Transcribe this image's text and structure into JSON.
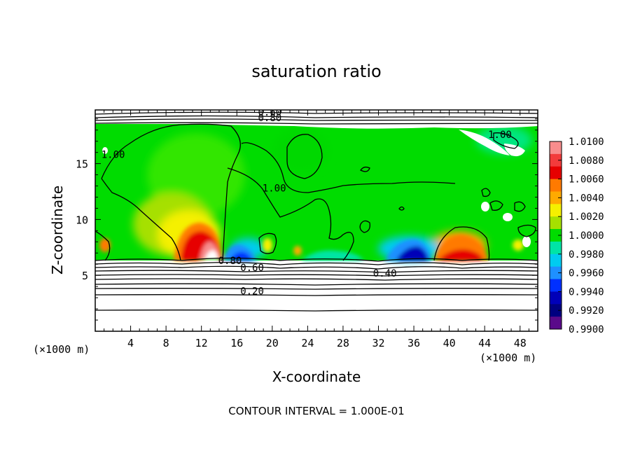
{
  "chart_data": {
    "type": "heatmap",
    "title": "saturation ratio",
    "xlabel": "X-coordinate",
    "ylabel": "Z-coordinate",
    "x_unit_label": "(×1000 m)",
    "z_unit_label": "(×1000 m)",
    "xlim": [
      0,
      50
    ],
    "ylim": [
      0,
      19.8
    ],
    "x_ticks": [
      "4",
      "8",
      "12",
      "16",
      "20",
      "24",
      "28",
      "32",
      "36",
      "40",
      "44",
      "48"
    ],
    "y_ticks": [
      "5",
      "10",
      "15"
    ],
    "colorbar": {
      "ticks": [
        "1.0100",
        "1.0080",
        "1.0060",
        "1.0040",
        "1.0020",
        "1.0000",
        "0.9980",
        "0.9960",
        "0.9940",
        "0.9920",
        "0.9900"
      ],
      "colors": [
        "#f88d8d",
        "#f33c3c",
        "#e60000",
        "#ff7a00",
        "#ffaa00",
        "#f5f000",
        "#a6e000",
        "#00dc00",
        "#00e4a6",
        "#00ccf0",
        "#1e90ff",
        "#0030ff",
        "#0000b8",
        "#000080",
        "#5a0a8a"
      ],
      "range": [
        0.99,
        1.01
      ]
    },
    "contour_labels": [
      {
        "text": "0.80",
        "x": 19.5,
        "z": 18.8
      },
      {
        "text": "0.60",
        "x": 19.5,
        "z": 19.3
      },
      {
        "text": "1.00",
        "x": 1.8,
        "z": 15.5
      },
      {
        "text": "1.00",
        "x": 20.0,
        "z": 12.5
      },
      {
        "text": "1.00",
        "x": 45.5,
        "z": 17.3
      },
      {
        "text": "0.80",
        "x": 15.0,
        "z": 6.0
      },
      {
        "text": "0.60",
        "x": 17.5,
        "z": 5.4
      },
      {
        "text": "0.40",
        "x": 32.5,
        "z": 4.9
      },
      {
        "text": "0.20",
        "x": 17.5,
        "z": 3.3
      }
    ],
    "contour_interval_note": "CONTOUR INTERVAL = 1.000E-01",
    "features": [
      {
        "description": "supersaturated plume",
        "x_center": 11.5,
        "z_base": 6.2,
        "max_value": 1.01
      },
      {
        "description": "supersaturated plume",
        "x_center": 40.5,
        "z_base": 6.2,
        "max_value": 1.008
      },
      {
        "description": "subsaturated pocket",
        "x_center": 15.0,
        "z_base": 6.2,
        "min_value": 0.992
      },
      {
        "description": "subsaturated pocket",
        "x_center": 35.5,
        "z_base": 6.2,
        "min_value": 0.993
      }
    ]
  }
}
